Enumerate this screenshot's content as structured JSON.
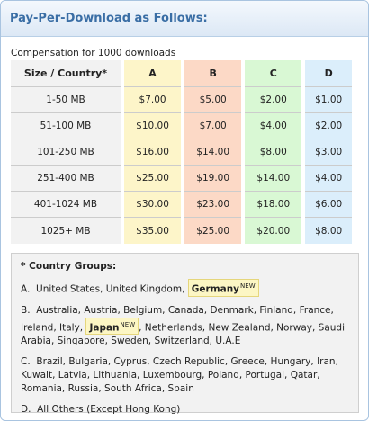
{
  "header": {
    "title": "Pay-Per-Download as Follows:"
  },
  "table": {
    "caption": "Compensation for 1000 downloads",
    "columns": [
      "Size / Country*",
      "A",
      "B",
      "C",
      "D"
    ],
    "rows": [
      [
        "1-50 MB",
        "$7.00",
        "$5.00",
        "$2.00",
        "$1.00"
      ],
      [
        "51-100 MB",
        "$10.00",
        "$7.00",
        "$4.00",
        "$2.00"
      ],
      [
        "101-250 MB",
        "$16.00",
        "$14.00",
        "$8.00",
        "$3.00"
      ],
      [
        "251-400 MB",
        "$25.00",
        "$19.00",
        "$14.00",
        "$4.00"
      ],
      [
        "401-1024 MB",
        "$30.00",
        "$23.00",
        "$18.00",
        "$6.00"
      ],
      [
        "1025+ MB",
        "$35.00",
        "$25.00",
        "$20.00",
        "$8.00"
      ]
    ]
  },
  "groups": {
    "title": "* Country Groups:",
    "new_label": "NEW",
    "A": {
      "prefix": "A.",
      "text": "United States, United Kingdom,",
      "highlight": "Germany"
    },
    "B": {
      "prefix": "B.",
      "before": "Australia, Austria, Belgium, Canada, Denmark, Finland, France, Ireland, Italy,",
      "highlight": "Japan",
      "after": ", Netherlands, New Zealand, Norway, Saudi Arabia, Singapore, Sweden, Switzerland, U.A.E"
    },
    "C": {
      "prefix": "C.",
      "text": "Brazil, Bulgaria, Cyprus, Czech Republic, Greece, Hungary, Iran, Kuwait, Latvia, Lithuania, Luxembourg, Poland, Portugal, Qatar, Romania, Russia, South Africa, Spain"
    },
    "D": {
      "prefix": "D.",
      "text": "All Others (Except Hong Kong)"
    }
  },
  "colors": {
    "header_text": "#3a6ea5",
    "col_A": "#fdf5c9",
    "col_B": "#fcd9c6",
    "col_C": "#d9f8d4",
    "col_D": "#dbeefb",
    "highlight": "#fcf6c4"
  }
}
